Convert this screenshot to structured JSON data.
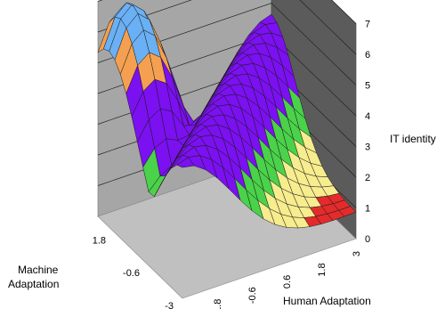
{
  "chart_data": {
    "type": "surface",
    "zlabel": "IT identity",
    "xlabel": "Human  Adaptation",
    "ylabel_line1": "Machine",
    "ylabel_line2": "Adaptation",
    "z_ticks": [
      "0",
      "1",
      "2",
      "3",
      "4",
      "5",
      "6",
      "7"
    ],
    "x_ticks": [
      "-3",
      "-1.8",
      "-0.6",
      "0.6",
      "1.8",
      "3"
    ],
    "y_ticks": [
      "1.8",
      "-0.6",
      "-3"
    ],
    "zlim": [
      0,
      7
    ],
    "xlim": [
      -3,
      3
    ],
    "ylim": [
      -3,
      3
    ],
    "z_band_colors": [
      "#e32b2b",
      "#f7ec8e",
      "#4ad24a",
      "#7b10f0",
      "#f5a050",
      "#6ab0f4"
    ],
    "z_band_edges": [
      0,
      1,
      2,
      3,
      5,
      6,
      7
    ],
    "surface_points_grid_human": [
      -3,
      -2.6,
      -2.2,
      -1.8,
      -1.4,
      -1.0,
      -0.6,
      -0.2,
      0.2,
      0.6,
      1.0,
      1.4,
      1.8,
      2.2,
      2.6,
      3.0
    ],
    "surface_points_grid_machine": [
      -3,
      -2.6,
      -2.2,
      -1.8,
      -1.4,
      -1.0,
      -0.6,
      -0.2,
      0.2,
      0.6,
      1.0,
      1.4,
      1.8,
      2.2,
      2.6,
      3.0
    ],
    "surface_peak": {
      "human": -2.2,
      "machine": 2.2,
      "identity": 7
    },
    "surface_corner_values": [
      {
        "human": -3,
        "machine": -3,
        "identity": 1
      },
      {
        "human": 3,
        "machine": 3,
        "identity": 3
      },
      {
        "human": 3,
        "machine": -3,
        "identity": 3.5
      },
      {
        "human": -3,
        "machine": 3,
        "identity": 5
      }
    ]
  }
}
